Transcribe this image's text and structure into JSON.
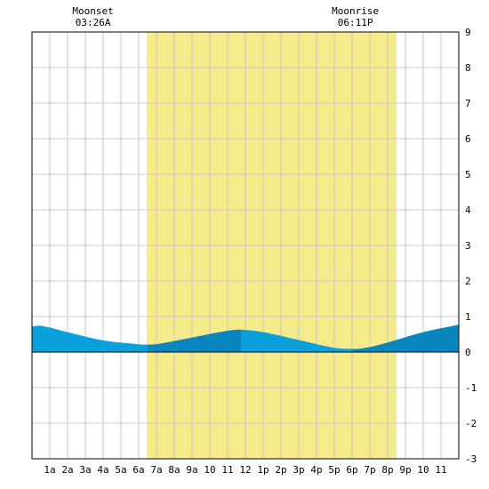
{
  "chart_data": {
    "type": "area",
    "title": "",
    "xlabel": "",
    "ylabel": "",
    "xlim": [
      0,
      24
    ],
    "ylim": [
      -3,
      9
    ],
    "y_ticks": [
      9,
      8,
      7,
      6,
      5,
      4,
      3,
      2,
      1,
      0,
      -1,
      -2,
      -3
    ],
    "x_ticks": [
      {
        "hour": 1,
        "label": "1a"
      },
      {
        "hour": 2,
        "label": "2a"
      },
      {
        "hour": 3,
        "label": "3a"
      },
      {
        "hour": 4,
        "label": "4a"
      },
      {
        "hour": 5,
        "label": "5a"
      },
      {
        "hour": 6,
        "label": "6a"
      },
      {
        "hour": 7,
        "label": "7a"
      },
      {
        "hour": 8,
        "label": "8a"
      },
      {
        "hour": 9,
        "label": "9a"
      },
      {
        "hour": 10,
        "label": "10"
      },
      {
        "hour": 11,
        "label": "11"
      },
      {
        "hour": 12,
        "label": "12"
      },
      {
        "hour": 13,
        "label": "1p"
      },
      {
        "hour": 14,
        "label": "2p"
      },
      {
        "hour": 15,
        "label": "3p"
      },
      {
        "hour": 16,
        "label": "4p"
      },
      {
        "hour": 17,
        "label": "5p"
      },
      {
        "hour": 18,
        "label": "6p"
      },
      {
        "hour": 19,
        "label": "7p"
      },
      {
        "hour": 20,
        "label": "8p"
      },
      {
        "hour": 21,
        "label": "9p"
      },
      {
        "hour": 22,
        "label": "10"
      },
      {
        "hour": 23,
        "label": "11"
      }
    ],
    "grid": true,
    "daylight_span": [
      6.45,
      20.5
    ],
    "tide_series": {
      "hours": [
        0,
        0.5,
        2,
        4,
        6,
        6.5,
        7,
        9,
        11,
        11.75,
        13,
        15,
        17,
        18,
        18.5,
        19.5,
        22,
        24
      ],
      "height": [
        0.72,
        0.74,
        0.56,
        0.33,
        0.22,
        0.21,
        0.22,
        0.41,
        0.6,
        0.63,
        0.56,
        0.34,
        0.12,
        0.09,
        0.1,
        0.2,
        0.56,
        0.77
      ]
    },
    "moon_events": [
      {
        "name": "Moonset",
        "time": "03:26A",
        "hour": 3.43
      },
      {
        "name": "Moonrise",
        "time": "06:11P",
        "hour": 18.18
      }
    ],
    "colors": {
      "daylight": "#f5eb8a",
      "tide_night": "#0aa0dc",
      "tide_day": "#0a86bf",
      "grid": "#c8c8c8",
      "axis": "#000000"
    }
  }
}
